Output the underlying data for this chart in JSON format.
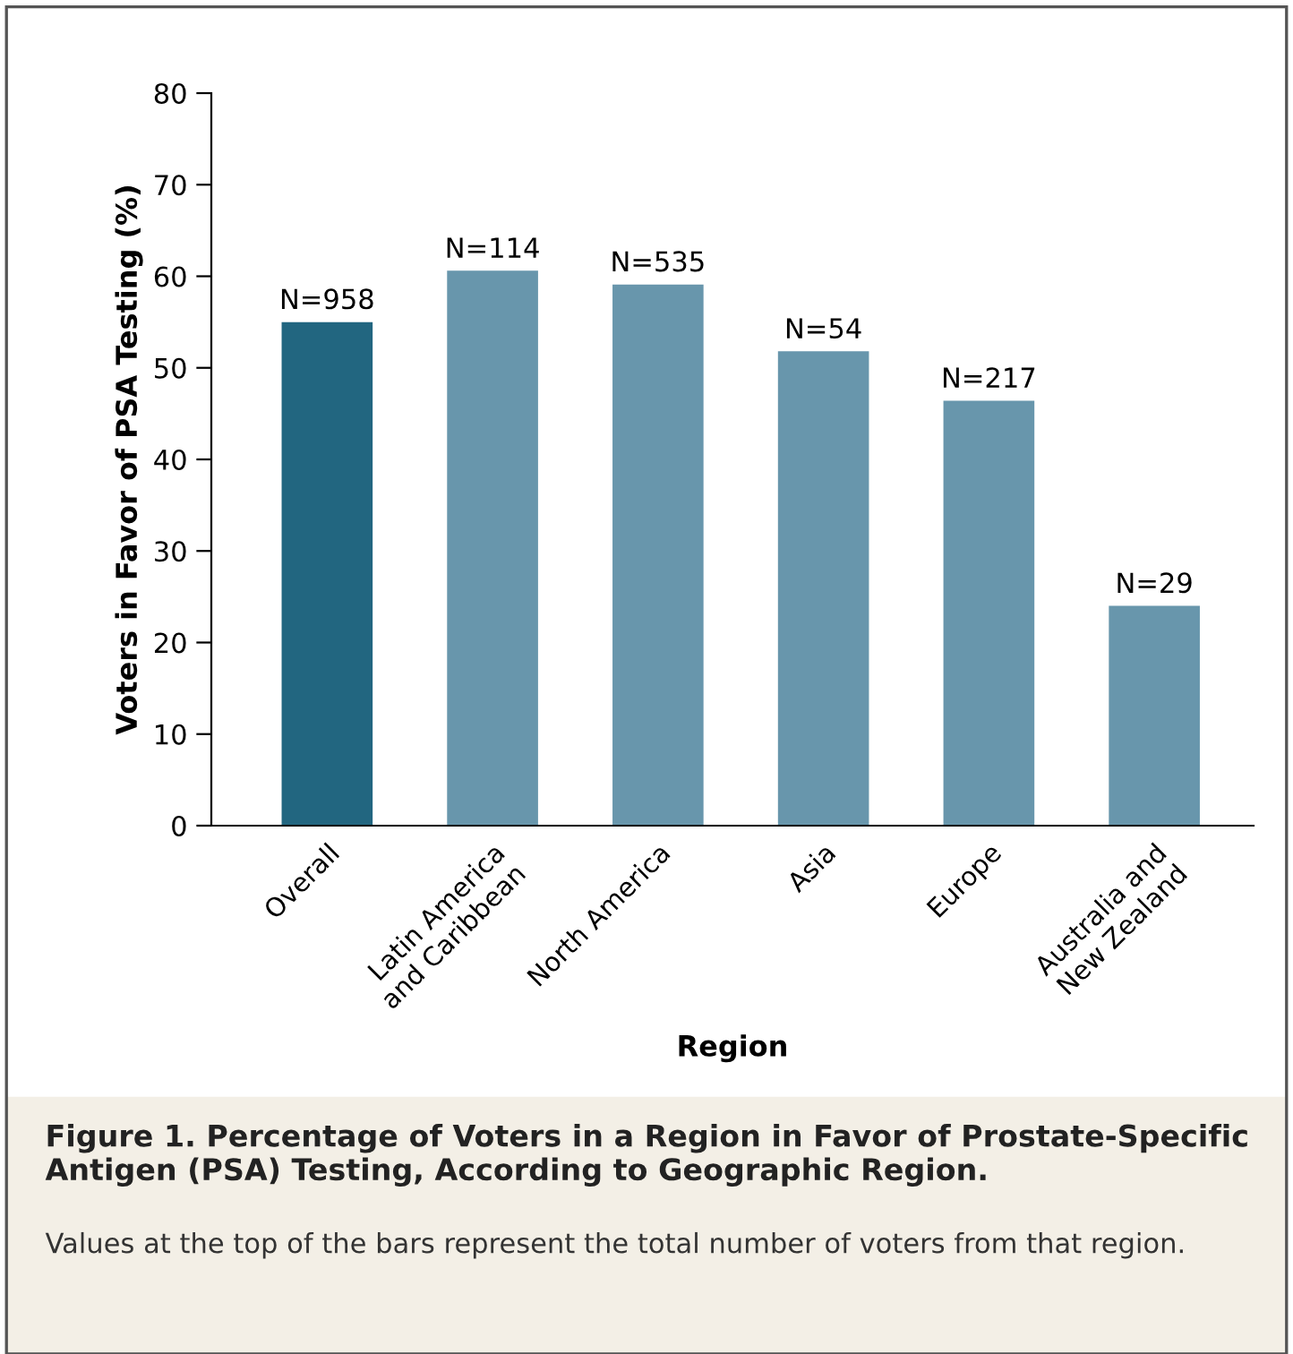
{
  "chart_data": {
    "type": "bar",
    "title": "Figure 1. Percentage of Voters in a Region in Favor of Prostate-Specific Antigen (PSA) Testing, According to Geographic Region.",
    "xlabel": "Region",
    "ylabel": "Voters in Favor of PSA Testing (%)",
    "annotations": [
      "Values at the top of the bars represent the total number of voters from that region.",
      {
        "text": "N=958",
        "x": "Overall",
        "y": 55.0
      },
      {
        "text": "N=114",
        "x": "Latin America\nand Caribbean",
        "y": 60.6
      },
      {
        "text": "N=535",
        "x": "North America",
        "y": 59.1
      },
      {
        "text": "N=54",
        "x": "Asia",
        "y": 51.8
      },
      {
        "text": "N=217",
        "x": "Europe",
        "y": 46.4
      },
      {
        "text": "N=29",
        "x": "Australia and\nNew Zealand",
        "y": 24.0
      }
    ],
    "categories": [
      "Overall",
      "Latin America\nand Caribbean",
      "North America",
      "Asia",
      "Europe",
      "Australia and\nNew Zealand"
    ],
    "values": [
      55.0,
      60.6,
      59.1,
      51.8,
      46.4,
      24.0
    ],
    "colors": [
      "#226680",
      "#6896ac",
      "#6896ac",
      "#6896ac",
      "#6896ac",
      "#6896ac"
    ],
    "ylim": [
      0,
      80
    ],
    "yticks": [
      0,
      10,
      20,
      30,
      40,
      50,
      60,
      70,
      80
    ],
    "grid": false,
    "legend": false
  }
}
